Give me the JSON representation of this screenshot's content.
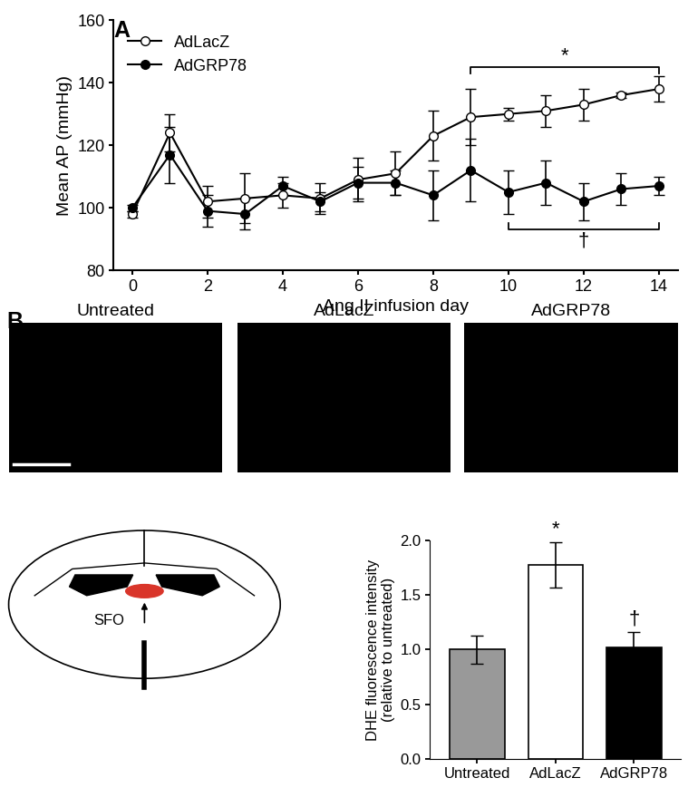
{
  "panel_labels": [
    "A",
    "B"
  ],
  "chart_data": [
    {
      "type": "line",
      "x": [
        0,
        1,
        2,
        3,
        4,
        5,
        6,
        7,
        8,
        9,
        10,
        11,
        12,
        13,
        14
      ],
      "xlabel": "Ang II infusion day",
      "ylabel": "Mean AP (mmHg)",
      "xlim": [
        -0.5,
        14.5
      ],
      "xticks": [
        0,
        2,
        4,
        6,
        8,
        10,
        12,
        14
      ],
      "ylim": [
        80,
        160
      ],
      "yticks": [
        80,
        100,
        120,
        140,
        160
      ],
      "legend": "upper left",
      "series": [
        {
          "name": "AdLacZ",
          "color": "#ffffff",
          "marker": "o",
          "line_style": "solid",
          "values": [
            98,
            124,
            102,
            103,
            104,
            103,
            109,
            111,
            123,
            129,
            130,
            131,
            133,
            136,
            138
          ],
          "errors": [
            1,
            6,
            5,
            8,
            4,
            5,
            7,
            7,
            8,
            9,
            2,
            5,
            5,
            1,
            4
          ]
        },
        {
          "name": "AdGRP78",
          "color": "#000000",
          "marker": "o",
          "line_style": "solid",
          "values": [
            100,
            117,
            99,
            98,
            107,
            102,
            108,
            108,
            104,
            112,
            105,
            108,
            102,
            106,
            107
          ],
          "errors": [
            1,
            9,
            5,
            5,
            3,
            3,
            5,
            4,
            8,
            10,
            7,
            7,
            6,
            5,
            3
          ]
        }
      ],
      "annotations": [
        {
          "text": "*",
          "series": "AdLacZ",
          "x_start": 9,
          "x_end": 14
        },
        {
          "text": "†",
          "series": "AdGRP78",
          "x_start": 10,
          "x_end": 14
        }
      ]
    },
    {
      "type": "bar",
      "categories": [
        "Untreated",
        "AdLacZ",
        "AdGRP78"
      ],
      "values": [
        1.0,
        1.78,
        1.02
      ],
      "errors": [
        0.13,
        0.21,
        0.14
      ],
      "colors": [
        "#999999",
        "#ffffff",
        "#000000"
      ],
      "ylabel": "DHE fluorescence intensity\n(relative to untreated)",
      "ylim": [
        0,
        2.0
      ],
      "yticks": [
        {
          "value": 0,
          "label": "0.0"
        },
        {
          "value": 0.5,
          "label": "0.5"
        },
        {
          "value": 1.0,
          "label": "1.0"
        },
        {
          "value": 1.5,
          "label": "1.5"
        },
        {
          "value": 2.0,
          "label": "2.0"
        }
      ],
      "annotations": [
        {
          "text": "*",
          "category": "AdLacZ"
        },
        {
          "text": "†",
          "category": "AdGRP78"
        }
      ]
    }
  ],
  "images": {
    "titles": [
      "Untreated",
      "AdLacZ",
      "AdGRP78"
    ]
  },
  "schematic": {
    "label": "SFO"
  }
}
